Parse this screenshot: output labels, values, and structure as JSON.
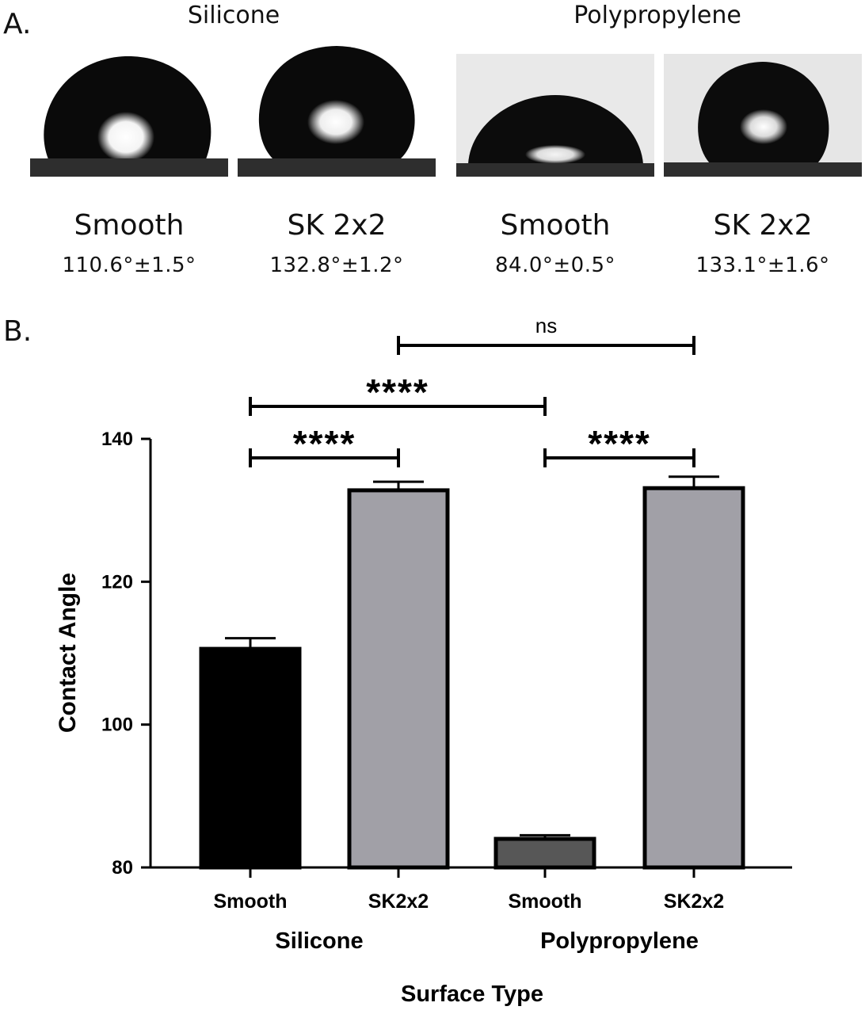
{
  "panel_a": {
    "label": "A.",
    "groups": [
      {
        "name": "Silicone"
      },
      {
        "name": "Polypropylene"
      }
    ],
    "droplets": [
      {
        "surface": "Smooth",
        "angle_text": "110.6°±1.5°",
        "angle": 110.6
      },
      {
        "surface": "SK 2x2",
        "angle_text": "132.8°±1.2°",
        "angle": 132.8
      },
      {
        "surface": "Smooth",
        "angle_text": "84.0°±0.5°",
        "angle": 84.0
      },
      {
        "surface": "SK 2x2",
        "angle_text": "133.1°±1.6°",
        "angle": 133.1
      }
    ]
  },
  "panel_b": {
    "label": "B."
  },
  "chart_data": {
    "type": "bar",
    "categories": [
      "Smooth",
      "SK2x2",
      "Smooth",
      "SK2x2"
    ],
    "groups": [
      "Silicone",
      "Polypropylene"
    ],
    "values": [
      110.6,
      132.8,
      84.0,
      133.1
    ],
    "errors": [
      1.5,
      1.2,
      0.5,
      1.6
    ],
    "bar_colors": [
      "#000000",
      "#a1a0a7",
      "#575757",
      "#a1a0a7"
    ],
    "ylabel": "Contact Angle",
    "xlabel": "Surface Type",
    "ylim": [
      80,
      140
    ],
    "yticks": [
      80,
      100,
      120,
      140
    ],
    "grid": false,
    "significance": [
      {
        "from": 0,
        "to": 1,
        "label": "****"
      },
      {
        "from": 0,
        "to": 2,
        "label": "****"
      },
      {
        "from": 2,
        "to": 3,
        "label": "****"
      },
      {
        "from": 1,
        "to": 3,
        "label": "ns"
      }
    ]
  }
}
